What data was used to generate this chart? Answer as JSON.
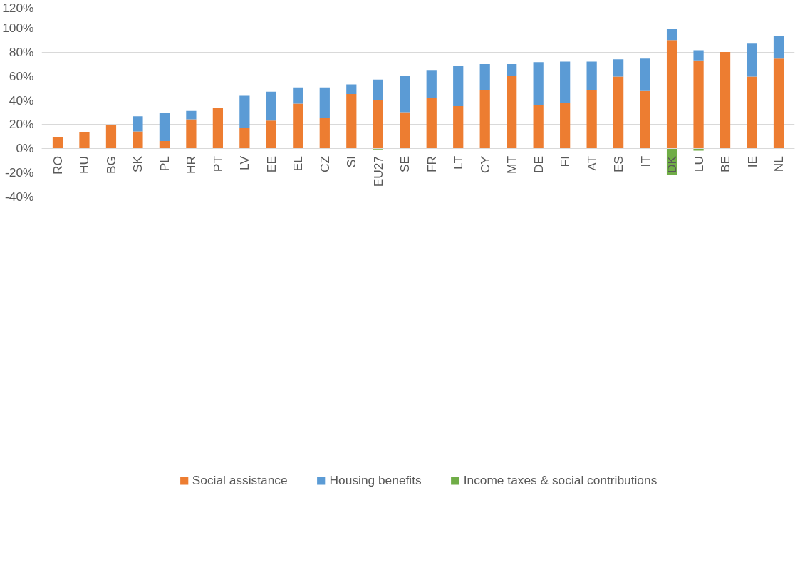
{
  "chart_data": {
    "type": "bar",
    "stacked": true,
    "categories": [
      "RO",
      "HU",
      "BG",
      "SK",
      "PL",
      "HR",
      "PT",
      "LV",
      "EE",
      "EL",
      "CZ",
      "SI",
      "EU27",
      "SE",
      "FR",
      "LT",
      "CY",
      "MT",
      "DE",
      "FI",
      "AT",
      "ES",
      "IT",
      "DK",
      "LU",
      "BE",
      "IE",
      "NL"
    ],
    "series": [
      {
        "name": "Social assistance",
        "color": "#ed7d31",
        "values": [
          9,
          13.5,
          19,
          14,
          6,
          24,
          33.5,
          17,
          23,
          37,
          25.5,
          45,
          40,
          30,
          42,
          35,
          48,
          60,
          36,
          38,
          48,
          59.5,
          47.5,
          90,
          73,
          80,
          59.5,
          74.5
        ]
      },
      {
        "name": "Housing benefits",
        "color": "#5b9bd5",
        "values": [
          null,
          null,
          null,
          12.5,
          23.5,
          7,
          null,
          26.5,
          24,
          13.5,
          25,
          8,
          17,
          30.5,
          23,
          33.5,
          22,
          10,
          35.5,
          34,
          24,
          14.5,
          27,
          9,
          8.5,
          null,
          27.5,
          18.5
        ]
      },
      {
        "name": "Income taxes & social contributions",
        "color": "#70ad47",
        "values": [
          null,
          null,
          null,
          null,
          null,
          null,
          null,
          null,
          null,
          null,
          null,
          null,
          -1,
          null,
          null,
          null,
          null,
          null,
          null,
          null,
          null,
          null,
          null,
          -22,
          -2,
          null,
          null,
          null
        ]
      }
    ],
    "ylim": [
      -40,
      120
    ],
    "yticks": [
      {
        "value": -40,
        "label": "-40%"
      },
      {
        "value": -20,
        "label": "-20%"
      },
      {
        "value": 0,
        "label": "0%"
      },
      {
        "value": 20,
        "label": "20%"
      },
      {
        "value": 40,
        "label": "40%"
      },
      {
        "value": 60,
        "label": "60%"
      },
      {
        "value": 80,
        "label": "80%"
      },
      {
        "value": 100,
        "label": "100%"
      },
      {
        "value": 120,
        "label": "120%"
      }
    ],
    "grid": "y",
    "legend": "bottom"
  }
}
